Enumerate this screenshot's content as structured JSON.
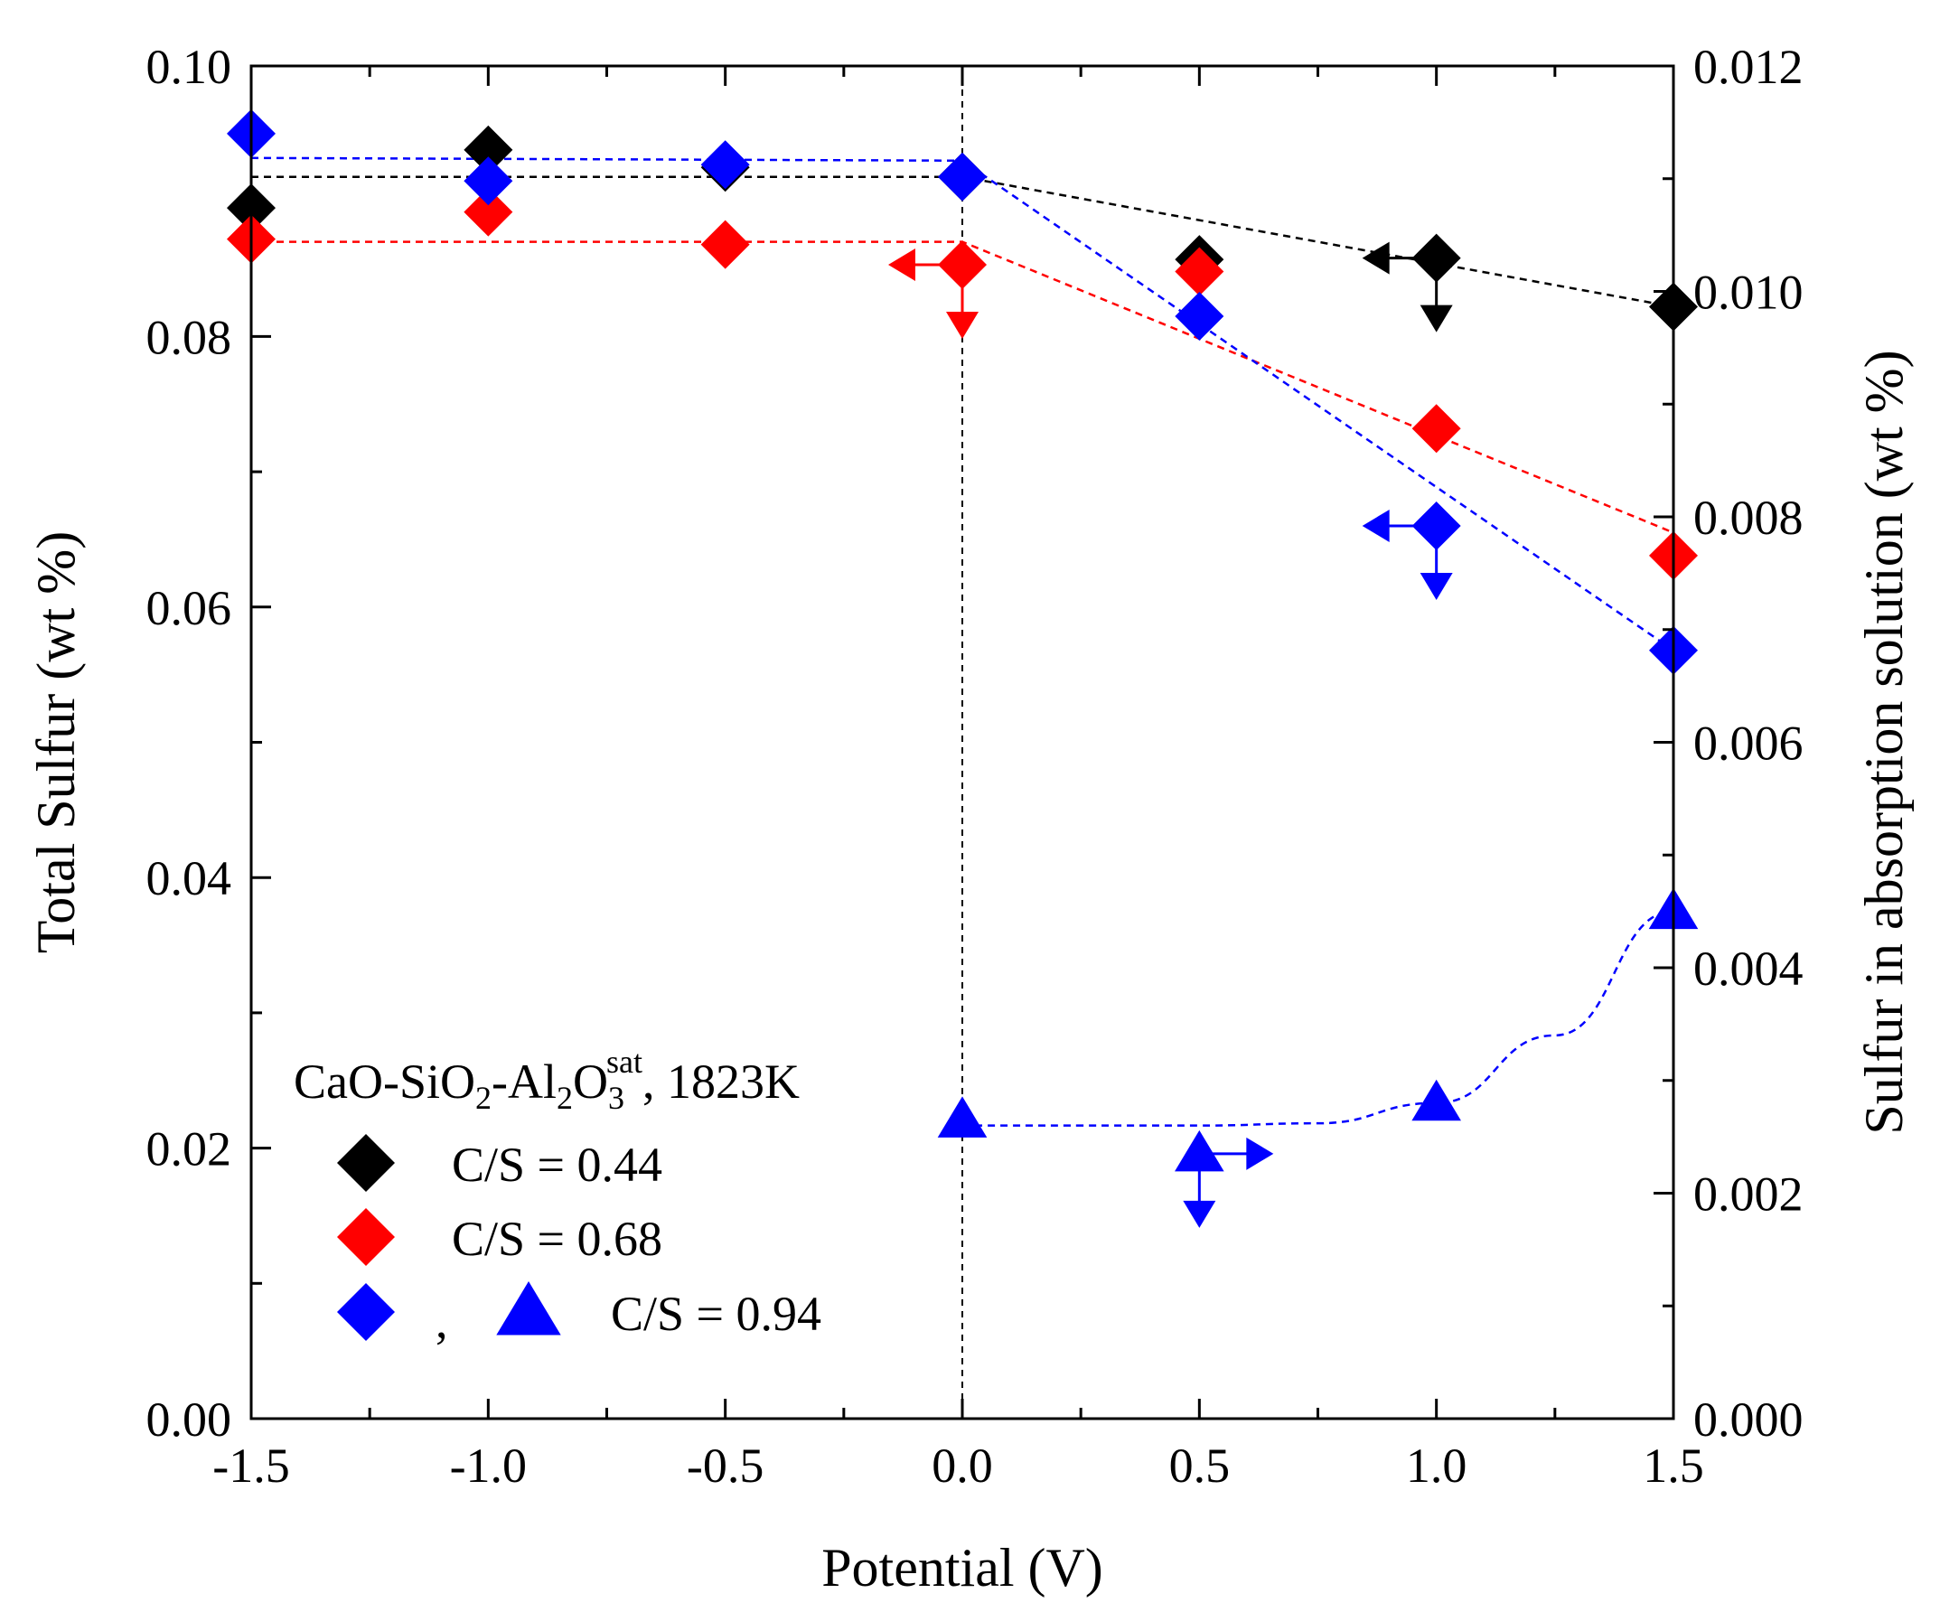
{
  "chart_data": {
    "type": "scatter",
    "xlabel": "Potential (V)",
    "ylabel_left": "Total Sulfur (wt %)",
    "ylabel_right": "Sulfur in absorption solution (wt %)",
    "xlim": [
      -1.5,
      1.5
    ],
    "ylim_left": [
      0.0,
      0.1
    ],
    "ylim_right": [
      0.0,
      0.012
    ],
    "x_ticks": [
      -1.5,
      -1.0,
      -0.5,
      0.0,
      0.5,
      1.0,
      1.5
    ],
    "x_tick_labels": [
      "-1.5",
      "-1.0",
      "-0.5",
      "0.0",
      "0.5",
      "1.0",
      "1.5"
    ],
    "y_left_ticks": [
      0.0,
      0.02,
      0.04,
      0.06,
      0.08,
      0.1
    ],
    "y_left_tick_labels": [
      "0.00",
      "0.02",
      "0.04",
      "0.06",
      "0.08",
      "0.10"
    ],
    "y_right_ticks": [
      0.0,
      0.002,
      0.004,
      0.006,
      0.008,
      0.01,
      0.012
    ],
    "y_right_tick_labels": [
      "0.000",
      "0.002",
      "0.004",
      "0.006",
      "0.008",
      "0.010",
      "0.012"
    ],
    "vertical_reference_line": 0.0,
    "legend": {
      "title_parts": [
        "CaO-SiO",
        "2",
        "-Al",
        "2",
        "O",
        "3",
        "sat",
        ", 1823K"
      ],
      "position": "bottom-left",
      "entries": [
        {
          "label": "C/S = 0.44",
          "color": "#000000",
          "marker": "diamond"
        },
        {
          "label": "C/S = 0.68",
          "color": "#ff0000",
          "marker": "diamond"
        },
        {
          "label": "C/S = 0.94",
          "color": "#0000ff",
          "marker": "diamond+triangle",
          "separator": ","
        }
      ]
    },
    "series": [
      {
        "name": "C/S = 0.44",
        "axis": "left",
        "marker": "diamond",
        "color": "#000000",
        "x": [
          -1.5,
          -1.0,
          -0.5,
          0.0,
          0.5,
          1.0,
          1.5
        ],
        "y": [
          0.0895,
          0.0938,
          0.0925,
          0.0918,
          0.0857,
          0.0858,
          0.0822
        ],
        "fit": {
          "x": [
            -1.5,
            0.0,
            1.5
          ],
          "y": [
            0.0918,
            0.0918,
            0.0822
          ]
        }
      },
      {
        "name": "C/S = 0.68",
        "axis": "left",
        "marker": "diamond",
        "color": "#ff0000",
        "x": [
          -1.5,
          -1.0,
          -0.5,
          0.0,
          0.5,
          1.0,
          1.5
        ],
        "y": [
          0.0872,
          0.0892,
          0.0868,
          0.0853,
          0.0848,
          0.0732,
          0.0638
        ],
        "fit": {
          "x": [
            -1.5,
            0.0,
            1.5
          ],
          "y": [
            0.087,
            0.087,
            0.0655
          ]
        }
      },
      {
        "name": "C/S = 0.94",
        "axis": "left",
        "marker": "diamond",
        "color": "#0000ff",
        "x": [
          -1.5,
          -1.0,
          -0.5,
          0.0,
          0.5,
          1.0,
          1.5
        ],
        "y": [
          0.095,
          0.0915,
          0.0927,
          0.0918,
          0.0815,
          0.066,
          0.0568
        ],
        "fit": {
          "x": [
            -1.5,
            0.0,
            1.5
          ],
          "y": [
            0.0932,
            0.093,
            0.0568
          ]
        }
      },
      {
        "name": "C/S = 0.94 (absorption solution)",
        "axis": "right",
        "marker": "triangle",
        "color": "#0000ff",
        "x": [
          0.0,
          0.5,
          1.0,
          1.5
        ],
        "y": [
          0.00265,
          0.00235,
          0.0028,
          0.0045
        ],
        "fit": {
          "x": [
            0.0,
            0.25,
            0.5,
            0.75,
            1.0,
            1.25,
            1.5
          ],
          "y": [
            0.0026,
            0.0026,
            0.0026,
            0.00262,
            0.0028,
            0.0034,
            0.0045
          ]
        }
      }
    ],
    "limit_arrows": [
      {
        "x": 0.0,
        "y": 0.0853,
        "axis": "left",
        "color": "#ff0000",
        "directions": [
          "left",
          "down"
        ]
      },
      {
        "x": 1.0,
        "y": 0.0858,
        "axis": "left",
        "color": "#000000",
        "directions": [
          "left",
          "down"
        ]
      },
      {
        "x": 1.0,
        "y": 0.066,
        "axis": "left",
        "color": "#0000ff",
        "directions": [
          "left",
          "down"
        ]
      },
      {
        "x": 0.5,
        "y": 0.00235,
        "axis": "right",
        "color": "#0000ff",
        "directions": [
          "right",
          "down"
        ]
      }
    ]
  }
}
